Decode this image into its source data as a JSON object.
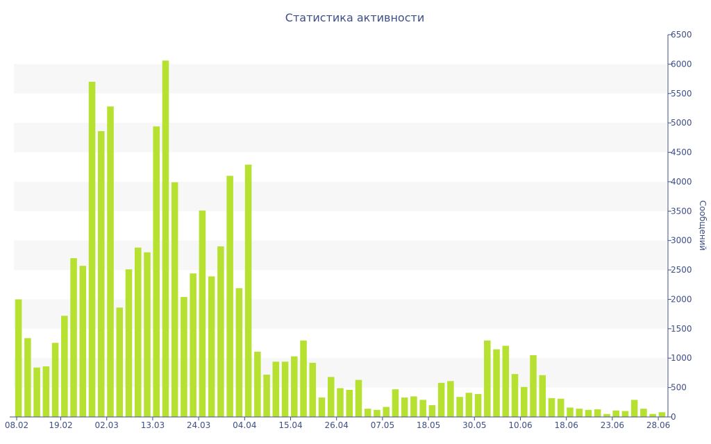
{
  "chart_data": {
    "type": "bar",
    "title": "Статистика активности",
    "xlabel": "",
    "ylabel": "Сообщений",
    "ylim": [
      0,
      6500
    ],
    "yticks": [
      0,
      500,
      1000,
      1500,
      2000,
      2500,
      3000,
      3500,
      4000,
      4500,
      5000,
      5500,
      6000,
      6500
    ],
    "ytick_labels": [
      "0",
      "500",
      "1000",
      "1500",
      "2000",
      "2500",
      "3000",
      "3500",
      "4000",
      "4500",
      "5000",
      "5500",
      "6000",
      "6500"
    ],
    "xtick_labels": [
      "08.02",
      "19.02",
      "02.03",
      "13.03",
      "24.03",
      "04.04",
      "15.04",
      "26.04",
      "07.05",
      "18.05",
      "30.05",
      "10.06",
      "18.06",
      "23.06",
      "28.06"
    ],
    "xtick_bar_index": [
      0,
      5,
      10,
      15,
      20,
      25,
      30,
      35,
      40,
      45,
      50,
      55,
      60,
      65,
      70
    ],
    "bar_color": "#b6e130",
    "band_color": "#f7f7f7",
    "axis_color": "#3e4e86",
    "grid": "alternating horizontal bands",
    "legend": "none",
    "values": [
      2000,
      1340,
      840,
      860,
      1260,
      1720,
      2700,
      2570,
      5700,
      4860,
      5280,
      1860,
      2510,
      2880,
      2800,
      4940,
      6060,
      3990,
      2040,
      2440,
      3510,
      2390,
      2900,
      4100,
      2190,
      4290,
      1110,
      720,
      940,
      940,
      1030,
      1300,
      920,
      330,
      680,
      490,
      460,
      630,
      140,
      120,
      170,
      470,
      330,
      350,
      290,
      200,
      580,
      610,
      340,
      410,
      390,
      1300,
      1150,
      1210,
      730,
      510,
      1050,
      710,
      320,
      310,
      160,
      140,
      120,
      130,
      50,
      110,
      100,
      290,
      140,
      50,
      80
    ]
  }
}
